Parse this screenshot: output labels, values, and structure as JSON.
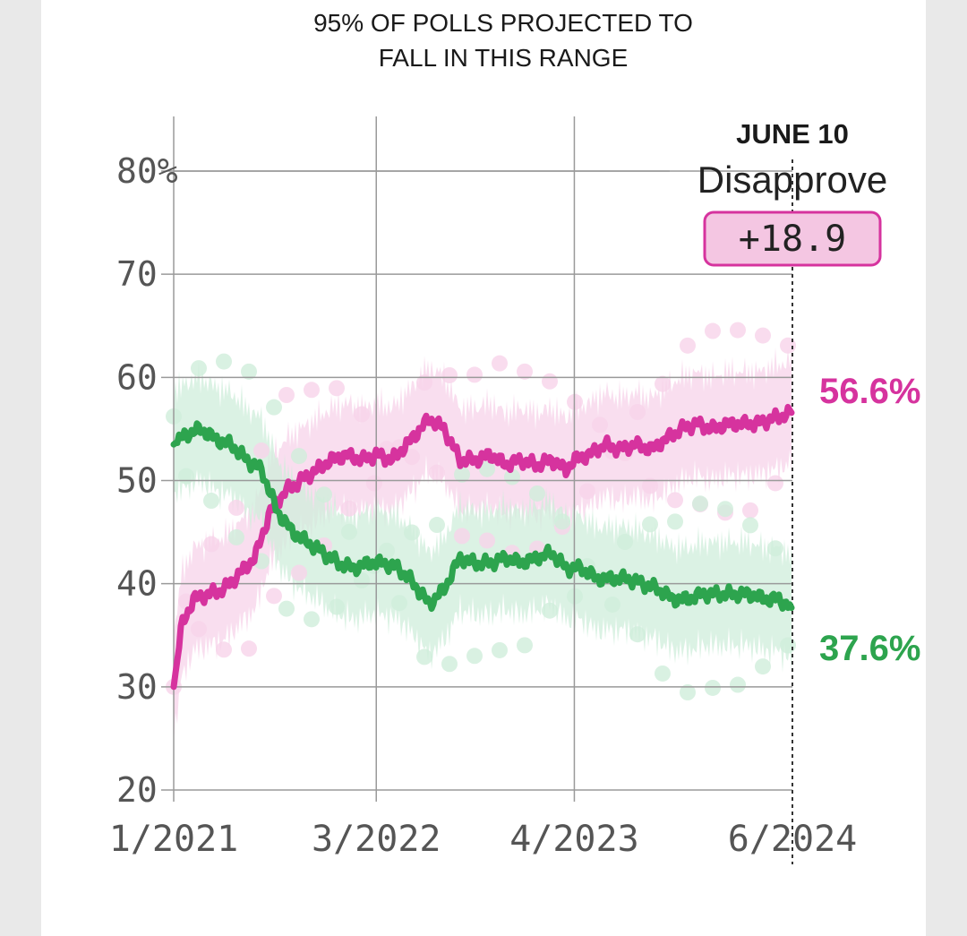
{
  "header": {
    "line1": "95% OF POLLS PROJECTED TO",
    "line2": "FALL IN THIS RANGE"
  },
  "callout": {
    "date": "JUNE 10",
    "leader": "Disapprove",
    "margin": "+18.9"
  },
  "colors": {
    "disapprove": "#d6339e",
    "approve": "#2da44e",
    "disapprove_band": "#f7d3ea",
    "approve_band": "#cfeedb",
    "grid": "#9a9a9a",
    "badge_fill": "#f4c6e2"
  },
  "chart_data": {
    "type": "line",
    "title": "",
    "xlabel": "",
    "ylabel": "",
    "ylim": [
      20,
      85
    ],
    "yticks": [
      {
        "value": 80,
        "label": "80%"
      },
      {
        "value": 70,
        "label": "70"
      },
      {
        "value": 60,
        "label": "60"
      },
      {
        "value": 50,
        "label": "50"
      },
      {
        "value": 40,
        "label": "40"
      },
      {
        "value": 30,
        "label": "30"
      },
      {
        "value": 20,
        "label": "20"
      }
    ],
    "xticks": [
      {
        "date": "2021-01-20",
        "label": "1/2021"
      },
      {
        "date": "2022-03-01",
        "label": "3/2022"
      },
      {
        "date": "2023-04-01",
        "label": "4/2023"
      },
      {
        "date": "2024-06-10",
        "label": "6/2024"
      }
    ],
    "x_range": [
      "2021-01-20",
      "2024-06-10"
    ],
    "grid": true,
    "band_note": "shaded band = 95% of polls projected range",
    "series": [
      {
        "key": "disapprove",
        "end_label": "56.6%",
        "band_halfwidth": 5,
        "points": [
          [
            "2021-01-20",
            30
          ],
          [
            "2021-02-05",
            36
          ],
          [
            "2021-03-01",
            38.5
          ],
          [
            "2021-04-01",
            39
          ],
          [
            "2021-05-01",
            39.5
          ],
          [
            "2021-06-01",
            41
          ],
          [
            "2021-07-01",
            42.5
          ],
          [
            "2021-08-01",
            47
          ],
          [
            "2021-09-01",
            49
          ],
          [
            "2021-10-01",
            50
          ],
          [
            "2021-11-01",
            51
          ],
          [
            "2021-12-01",
            52
          ],
          [
            "2022-01-01",
            52.5
          ],
          [
            "2022-02-01",
            52
          ],
          [
            "2022-03-01",
            52.5
          ],
          [
            "2022-04-01",
            52
          ],
          [
            "2022-05-01",
            53.5
          ],
          [
            "2022-06-15",
            56
          ],
          [
            "2022-07-15",
            55
          ],
          [
            "2022-08-15",
            52
          ],
          [
            "2022-09-15",
            52
          ],
          [
            "2022-10-15",
            52.5
          ],
          [
            "2022-11-15",
            51.5
          ],
          [
            "2022-12-15",
            52
          ],
          [
            "2023-01-15",
            51.5
          ],
          [
            "2023-02-15",
            52
          ],
          [
            "2023-03-15",
            51
          ],
          [
            "2023-04-01",
            52
          ],
          [
            "2023-05-01",
            52.5
          ],
          [
            "2023-06-01",
            53.5
          ],
          [
            "2023-07-01",
            53
          ],
          [
            "2023-08-01",
            53.5
          ],
          [
            "2023-09-01",
            53
          ],
          [
            "2023-10-01",
            54
          ],
          [
            "2023-11-01",
            55
          ],
          [
            "2023-12-01",
            55.5
          ],
          [
            "2024-01-01",
            55
          ],
          [
            "2024-02-01",
            55.5
          ],
          [
            "2024-03-01",
            55.5
          ],
          [
            "2024-04-01",
            55.5
          ],
          [
            "2024-05-01",
            56
          ],
          [
            "2024-06-10",
            56.6
          ]
        ]
      },
      {
        "key": "approve",
        "end_label": "37.6%",
        "band_halfwidth": 5,
        "points": [
          [
            "2021-01-20",
            53.5
          ],
          [
            "2021-02-15",
            54.5
          ],
          [
            "2021-03-15",
            55
          ],
          [
            "2021-04-15",
            54
          ],
          [
            "2021-05-15",
            53.5
          ],
          [
            "2021-06-15",
            52
          ],
          [
            "2021-07-15",
            51
          ],
          [
            "2021-08-15",
            47
          ],
          [
            "2021-09-15",
            45
          ],
          [
            "2021-10-15",
            44
          ],
          [
            "2021-11-15",
            43
          ],
          [
            "2021-12-15",
            42
          ],
          [
            "2022-01-15",
            41.5
          ],
          [
            "2022-02-15",
            42
          ],
          [
            "2022-03-15",
            42
          ],
          [
            "2022-04-15",
            41.5
          ],
          [
            "2022-05-15",
            40
          ],
          [
            "2022-06-15",
            38
          ],
          [
            "2022-07-15",
            39.5
          ],
          [
            "2022-08-15",
            42.5
          ],
          [
            "2022-09-15",
            42
          ],
          [
            "2022-10-15",
            42
          ],
          [
            "2022-11-15",
            42.5
          ],
          [
            "2022-12-15",
            42
          ],
          [
            "2023-01-15",
            42.5
          ],
          [
            "2023-02-15",
            43
          ],
          [
            "2023-03-15",
            41.5
          ],
          [
            "2023-04-15",
            41.5
          ],
          [
            "2023-05-15",
            40.5
          ],
          [
            "2023-06-15",
            40.5
          ],
          [
            "2023-07-15",
            40.5
          ],
          [
            "2023-08-15",
            40
          ],
          [
            "2023-09-15",
            39.5
          ],
          [
            "2023-10-15",
            38.5
          ],
          [
            "2023-11-15",
            38.5
          ],
          [
            "2023-12-15",
            39
          ],
          [
            "2024-01-15",
            39
          ],
          [
            "2024-02-15",
            39
          ],
          [
            "2024-03-15",
            39
          ],
          [
            "2024-04-15",
            38.5
          ],
          [
            "2024-05-15",
            38.5
          ],
          [
            "2024-06-10",
            37.6
          ]
        ]
      }
    ]
  }
}
